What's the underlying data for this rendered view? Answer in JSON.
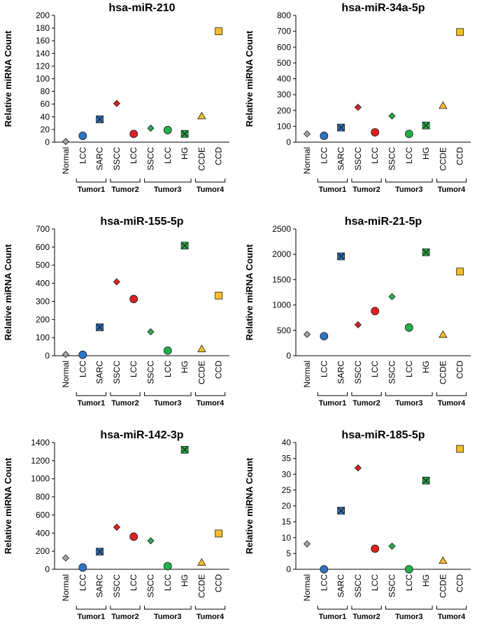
{
  "chart_data": [
    {
      "type": "scatter",
      "title": "hsa-miR-210",
      "ylabel": "Relative miRNA Count",
      "ylim": [
        0,
        200
      ],
      "yticks": [
        0,
        20,
        40,
        60,
        80,
        100,
        120,
        140,
        160,
        180,
        200
      ],
      "values": [
        1,
        10,
        36,
        61,
        13,
        22,
        19,
        13,
        41,
        175
      ]
    },
    {
      "type": "scatter",
      "title": "hsa-miR-34a-5p",
      "ylabel": "Relative miRNA Count",
      "ylim": [
        0,
        800
      ],
      "yticks": [
        0,
        100,
        200,
        300,
        400,
        500,
        600,
        700,
        800
      ],
      "values": [
        52,
        40,
        92,
        220,
        62,
        165,
        52,
        105,
        230,
        695
      ]
    },
    {
      "type": "scatter",
      "title": "hsa-miR-155-5p",
      "ylabel": "Relative miRNA Count",
      "ylim": [
        0,
        700
      ],
      "yticks": [
        0,
        100,
        200,
        300,
        400,
        500,
        600,
        700
      ],
      "values": [
        7,
        5,
        157,
        408,
        313,
        132,
        28,
        608,
        37,
        332
      ]
    },
    {
      "type": "scatter",
      "title": "hsa-miR-21-5p",
      "ylabel": "Relative miRNA Count",
      "ylim": [
        0,
        2500
      ],
      "yticks": [
        0,
        500,
        1000,
        1500,
        2000,
        2500
      ],
      "values": [
        420,
        385,
        1960,
        610,
        880,
        1165,
        555,
        2040,
        415,
        1660
      ]
    },
    {
      "type": "scatter",
      "title": "hsa-miR-142-3p",
      "ylabel": "Relative miRNA Count",
      "ylim": [
        0,
        1400
      ],
      "yticks": [
        0,
        200,
        400,
        600,
        800,
        1000,
        1200,
        1400
      ],
      "values": [
        125,
        20,
        195,
        465,
        360,
        315,
        35,
        1320,
        75,
        395
      ]
    },
    {
      "type": "scatter",
      "title": "hsa-miR-185-5p",
      "ylabel": "Relative miRNA Count",
      "ylim": [
        0,
        40
      ],
      "yticks": [
        0,
        5,
        10,
        15,
        20,
        25,
        30,
        35,
        40
      ],
      "values": [
        8,
        0,
        18.5,
        32,
        6.5,
        7.3,
        0,
        28,
        2.7,
        38
      ]
    }
  ],
  "categories": [
    "Normal",
    "LCC",
    "SARC",
    "SSCC",
    "LCC",
    "SSCC",
    "LCC",
    "HG",
    "CCDE",
    "CCD"
  ],
  "groups": [
    {
      "label": "Tumor1",
      "from": 1,
      "to": 2
    },
    {
      "label": "Tumor2",
      "from": 3,
      "to": 4
    },
    {
      "label": "Tumor3",
      "from": 5,
      "to": 7
    },
    {
      "label": "Tumor4",
      "from": 8,
      "to": 9
    }
  ],
  "markers": [
    {
      "shape": "diamond",
      "color": "#a6a6a6"
    },
    {
      "shape": "circle",
      "color": "#2e75c2"
    },
    {
      "shape": "square-x",
      "color": "#2e75c2"
    },
    {
      "shape": "diamond",
      "color": "#e02020"
    },
    {
      "shape": "circle",
      "color": "#e02020"
    },
    {
      "shape": "diamond",
      "color": "#22b04a"
    },
    {
      "shape": "circle",
      "color": "#22b04a"
    },
    {
      "shape": "square-x",
      "color": "#22b04a"
    },
    {
      "shape": "triangle",
      "color": "#f5be2a"
    },
    {
      "shape": "square",
      "color": "#f5be2a"
    }
  ]
}
